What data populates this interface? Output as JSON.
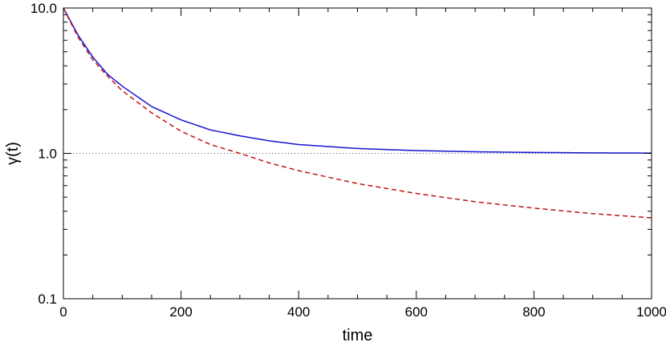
{
  "chart_data": {
    "type": "line",
    "xlabel": "time",
    "ylabel": "γ(t)",
    "xlim": [
      0,
      1000
    ],
    "ylim": [
      0.1,
      10
    ],
    "yscale": "log",
    "grid": false,
    "x_ticks": [
      0,
      200,
      400,
      600,
      800,
      1000
    ],
    "x_tick_labels": [
      "0",
      "200",
      "400",
      "600",
      "800",
      "1000"
    ],
    "y_ticks": [
      0.1,
      1,
      10
    ],
    "y_tick_labels": [
      "0.1",
      "1.0",
      "10.0"
    ],
    "reference_line": {
      "y": 1.0,
      "style": "dotted",
      "color": "#555555"
    },
    "series": [
      {
        "style": "solid",
        "color": "#1414d2",
        "x": [
          0,
          25,
          50,
          75,
          100,
          150,
          200,
          250,
          300,
          350,
          400,
          500,
          600,
          700,
          800,
          900,
          1000
        ],
        "y": [
          10.0,
          6.5,
          4.6,
          3.5,
          2.9,
          2.1,
          1.7,
          1.45,
          1.32,
          1.22,
          1.15,
          1.08,
          1.045,
          1.025,
          1.015,
          1.008,
          1.005
        ]
      },
      {
        "style": "dashed",
        "color": "#c01414",
        "x": [
          0,
          25,
          50,
          75,
          100,
          150,
          200,
          250,
          300,
          350,
          400,
          500,
          600,
          700,
          800,
          900,
          1000
        ],
        "y": [
          10.0,
          6.3,
          4.4,
          3.4,
          2.7,
          1.9,
          1.42,
          1.15,
          1.0,
          0.86,
          0.76,
          0.62,
          0.53,
          0.465,
          0.42,
          0.385,
          0.36
        ]
      }
    ]
  }
}
